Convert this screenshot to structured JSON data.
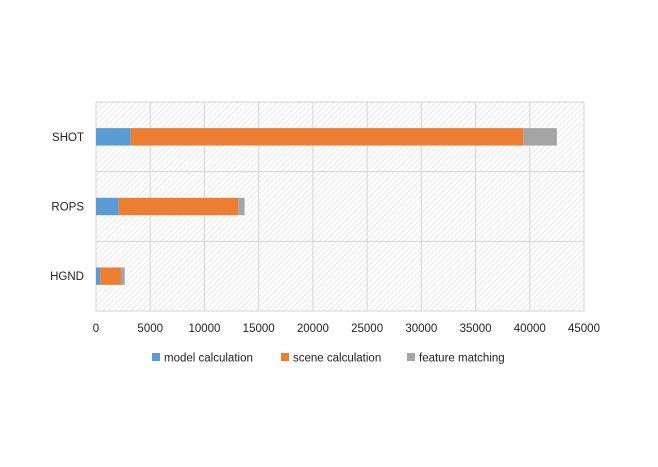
{
  "chart_data": {
    "type": "bar",
    "orientation": "horizontal",
    "stacked": true,
    "categories": [
      "SHOT",
      "ROPS",
      "HGND"
    ],
    "series": [
      {
        "name": "model calculation",
        "color": "#5b9bd5",
        "values": [
          3200,
          2100,
          400
        ]
      },
      {
        "name": "scene calculation",
        "color": "#ed7d31",
        "values": [
          36200,
          11000,
          1900
        ]
      },
      {
        "name": "feature matching",
        "color": "#a5a5a5",
        "values": [
          3100,
          600,
          350
        ]
      }
    ],
    "xlim": [
      0,
      45000
    ],
    "xticks": [
      0,
      5000,
      10000,
      15000,
      20000,
      25000,
      30000,
      35000,
      40000,
      45000
    ],
    "xtick_labels": [
      "0",
      "5000",
      "10000",
      "15000",
      "20000",
      "25000",
      "30000",
      "35000",
      "40000",
      "45000"
    ],
    "legend": {
      "position": "bottom"
    },
    "grid": true,
    "plot_background": "hatched-light-gray"
  }
}
